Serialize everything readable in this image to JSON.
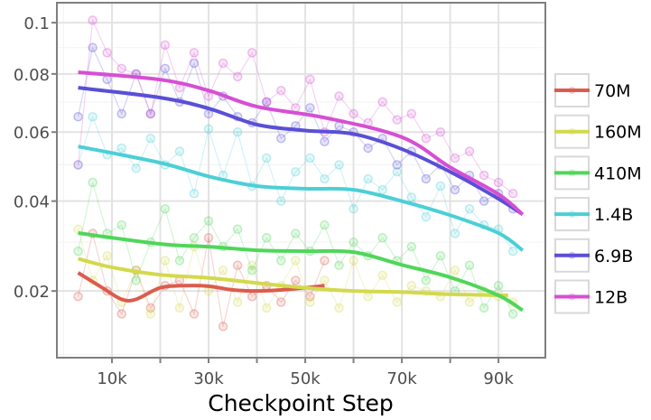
{
  "chart_data": {
    "type": "line",
    "title": "",
    "xlabel": "Checkpoint Step",
    "ylabel": "",
    "x_scale": "linear",
    "y_scale": "sqrt",
    "xlim": [
      -1400,
      99700
    ],
    "ylim": [
      0.0096,
      0.1084
    ],
    "x_ticks": [
      10000,
      20000,
      30000,
      40000,
      50000,
      60000,
      70000,
      80000,
      90000
    ],
    "x_tick_labels": [
      "10k",
      "",
      "30k",
      "",
      "50k",
      "",
      "70k",
      "",
      "90k"
    ],
    "y_ticks": [
      0.02,
      0.04,
      0.06,
      0.08,
      0.1
    ],
    "y_tick_labels": [
      "0.02",
      "0.04",
      "0.06",
      "0.08",
      "0.1"
    ],
    "grid": true,
    "legend_position": "right",
    "steps": [
      3000,
      6000,
      9000,
      12000,
      15000,
      18000,
      21000,
      24000,
      27000,
      30000,
      33000,
      36000,
      39000,
      42000,
      45000,
      48000,
      51000,
      54000,
      57000,
      60000,
      63000,
      66000,
      69000,
      72000,
      75000,
      78000,
      81000,
      84000,
      87000,
      90000,
      93000
    ],
    "series": [
      {
        "name": "70M",
        "color": "#db5c4e",
        "values": [
          0.019,
          0.032,
          0.02,
          0.016,
          0.024,
          0.017,
          0.021,
          0.022,
          0.016,
          0.031,
          0.014,
          0.025,
          0.019,
          0.021,
          0.018,
          0.022,
          0.019,
          0.026
        ],
        "trend_steps": [
          3000,
          8000,
          12000,
          15000,
          20000,
          25000,
          30000,
          35000,
          40000,
          45000,
          50000,
          54000
        ],
        "trend_values": [
          0.0235,
          0.0206,
          0.0185,
          0.0185,
          0.0206,
          0.021,
          0.0209,
          0.0202,
          0.02,
          0.0202,
          0.0206,
          0.021
        ]
      },
      {
        "name": "160M",
        "color": "#d3d94c",
        "values": [
          0.033,
          0.022,
          0.027,
          0.018,
          0.024,
          0.016,
          0.026,
          0.017,
          0.029,
          0.02,
          0.024,
          0.018,
          0.025,
          0.017,
          0.021,
          0.026,
          0.018,
          0.022,
          0.017,
          0.026,
          0.019,
          0.023,
          0.018,
          0.021,
          0.02,
          0.019,
          0.024,
          0.018,
          0.02,
          0.019,
          0.018
        ],
        "trend_steps": [
          3000,
          10000,
          20000,
          30000,
          40000,
          50000,
          60000,
          70000,
          80000,
          92000
        ],
        "trend_values": [
          0.0264,
          0.0246,
          0.0231,
          0.0225,
          0.0215,
          0.0206,
          0.02,
          0.0198,
          0.0194,
          0.0192
        ]
      },
      {
        "name": "410M",
        "color": "#4fd65a",
        "values": [
          0.028,
          0.045,
          0.032,
          0.034,
          0.022,
          0.03,
          0.038,
          0.026,
          0.031,
          0.035,
          0.029,
          0.033,
          0.024,
          0.031,
          0.026,
          0.032,
          0.028,
          0.034,
          0.025,
          0.03,
          0.027,
          0.031,
          0.026,
          0.029,
          0.022,
          0.027,
          0.02,
          0.025,
          0.017,
          0.021,
          0.016
        ],
        "trend_steps": [
          3000,
          20000,
          30000,
          40000,
          50000,
          60000,
          70000,
          80000,
          90000,
          95000
        ],
        "trend_values": [
          0.0321,
          0.0296,
          0.029,
          0.0282,
          0.028,
          0.0278,
          0.0251,
          0.0226,
          0.0192,
          0.0166
        ]
      },
      {
        "name": "1.4B",
        "color": "#4ccfd6",
        "values": [
          0.05,
          0.065,
          0.053,
          0.055,
          0.049,
          0.058,
          0.05,
          0.054,
          0.042,
          0.061,
          0.047,
          0.06,
          0.044,
          0.052,
          0.04,
          0.048,
          0.052,
          0.046,
          0.05,
          0.038,
          0.046,
          0.043,
          0.048,
          0.041,
          0.036,
          0.044,
          0.032,
          0.038,
          0.034,
          0.033,
          0.028
        ],
        "trend_steps": [
          3000,
          20000,
          30000,
          40000,
          50000,
          60000,
          70000,
          80000,
          90000,
          95000
        ],
        "trend_values": [
          0.0555,
          0.0506,
          0.0467,
          0.044,
          0.0433,
          0.043,
          0.04,
          0.0364,
          0.0321,
          0.0282
        ]
      },
      {
        "name": "6.9B",
        "color": "#5a4fd6",
        "values": [
          0.065,
          0.09,
          0.078,
          0.066,
          0.08,
          0.066,
          0.082,
          0.07,
          0.084,
          0.066,
          0.072,
          0.065,
          0.063,
          0.07,
          0.058,
          0.062,
          0.068,
          0.057,
          0.062,
          0.06,
          0.055,
          0.058,
          0.05,
          0.054,
          0.046,
          0.05,
          0.043,
          0.047,
          0.04,
          0.042,
          0.038
        ],
        "trend_steps": [
          3000,
          20000,
          30000,
          40000,
          50000,
          60000,
          70000,
          80000,
          90000,
          95000
        ],
        "trend_values": [
          0.075,
          0.0715,
          0.0678,
          0.0624,
          0.0605,
          0.0594,
          0.0547,
          0.048,
          0.0406,
          0.0366
        ]
      },
      {
        "name": "12B",
        "color": "#d64fd3",
        "values": [
          0.05,
          0.101,
          0.088,
          0.082,
          0.08,
          0.066,
          0.091,
          0.075,
          0.088,
          0.072,
          0.084,
          0.079,
          0.088,
          0.07,
          0.074,
          0.068,
          0.078,
          0.06,
          0.072,
          0.066,
          0.063,
          0.07,
          0.064,
          0.066,
          0.058,
          0.06,
          0.052,
          0.054,
          0.047,
          0.045,
          0.042
        ],
        "trend_steps": [
          3000,
          20000,
          30000,
          40000,
          54000,
          70000,
          80000,
          90000,
          95000
        ],
        "trend_values": [
          0.0806,
          0.0779,
          0.074,
          0.0684,
          0.0647,
          0.0584,
          0.0493,
          0.0418,
          0.0366
        ]
      }
    ]
  }
}
